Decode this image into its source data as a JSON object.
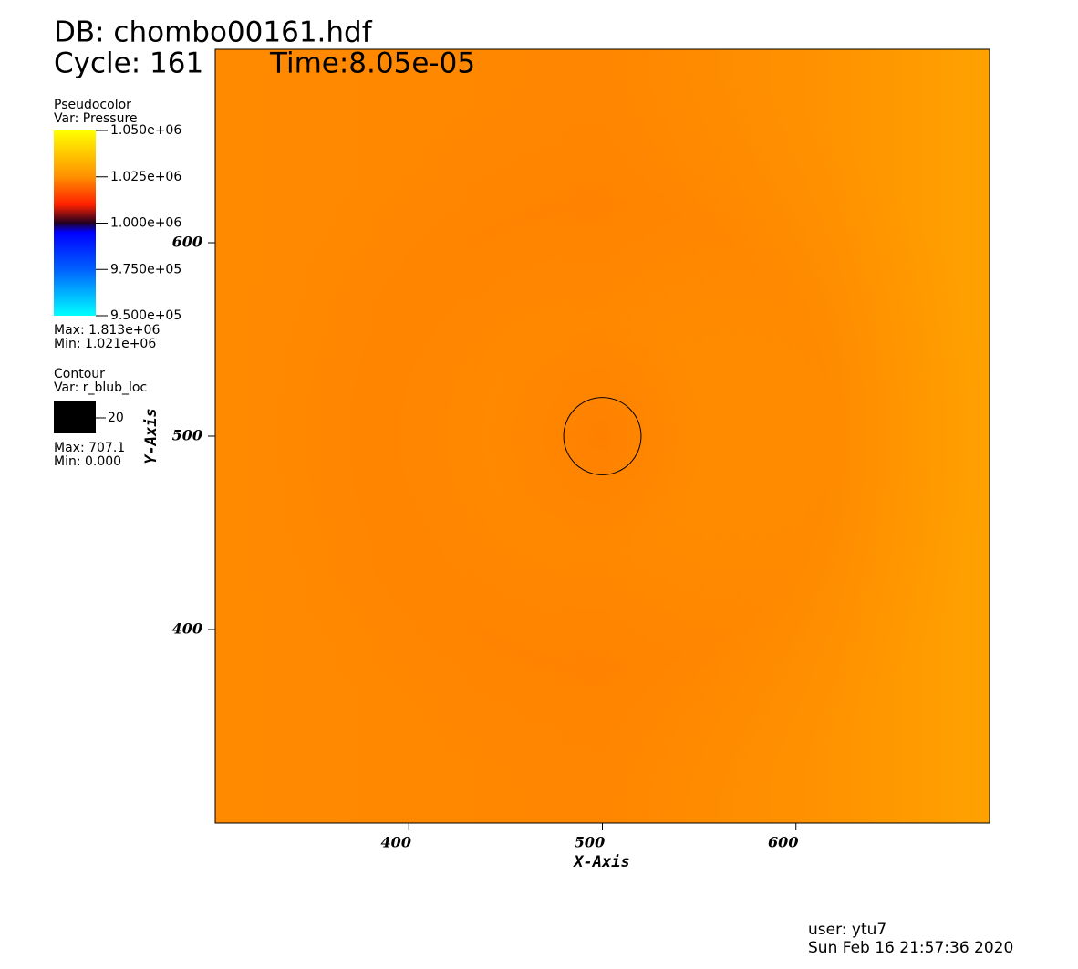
{
  "header": {
    "db": "DB: chombo00161.hdf",
    "cycle": "Cycle: 161",
    "time": "Time:8.05e-05"
  },
  "chart_data": {
    "type": "pseudocolor",
    "x_label": "X-Axis",
    "y_label": "Y-Axis",
    "xlim": [
      300,
      700
    ],
    "ylim": [
      300,
      700
    ],
    "xticks": [
      400,
      500,
      600
    ],
    "yticks": [
      400,
      500,
      600
    ],
    "pseudocolor": {
      "title": "Pseudocolor",
      "var": "Var: Pressure",
      "clim": [
        950000,
        1050000
      ],
      "ticks": [
        {
          "value": 1050000,
          "label": "1.050e+06"
        },
        {
          "value": 1025000,
          "label": "1.025e+06"
        },
        {
          "value": 1000000,
          "label": "1.000e+06"
        },
        {
          "value": 975000,
          "label": "9.750e+05"
        },
        {
          "value": 950000,
          "label": "9.500e+05"
        }
      ],
      "max": "Max:  1.813e+06",
      "min": "Min:  1.021e+06"
    },
    "contour": {
      "title": "Contour",
      "var": "Var: r_blub_loc",
      "levels": [
        20
      ],
      "max": "Max: 707.1",
      "min": "Min: 0.000",
      "center": [
        500,
        500
      ],
      "color": "#000000"
    }
  },
  "footer": {
    "user": "user: ytu7",
    "date": "Sun Feb 16 21:57:36 2020"
  }
}
